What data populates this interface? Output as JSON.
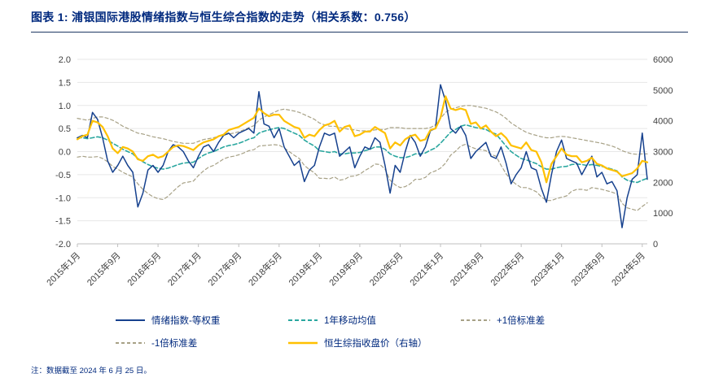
{
  "header": {
    "title": "图表 1:  浦银国际港股情绪指数与恒生综合指数的走势（相关系数：0.756）"
  },
  "note": "注：数据截至 2024 年 6 月 25 日。",
  "colors": {
    "navy": "#16418e",
    "teal": "#2aa79f",
    "olive": "#a7a186",
    "gold": "#ffc000",
    "title_navy": "#00297e",
    "grid": "#e7e7e7",
    "axis_line": "#bfbfbf",
    "axis_text": "#3f3f3f"
  },
  "chart_data": {
    "type": "line",
    "title": "浦银国际港股情绪指数与恒生综合指数的走势（相关系数：0.756）",
    "legend_position": "bottom",
    "grid": "horizontal",
    "x_count": 114,
    "x_tick_labels": [
      "2015年1月",
      "2015年9月",
      "2016年5月",
      "2017年1月",
      "2017年9月",
      "2018年5月",
      "2019年1月",
      "2019年9月",
      "2020年5月",
      "2021年1月",
      "2021年9月",
      "2022年5月",
      "2023年1月",
      "2023年9月",
      "2024年5月"
    ],
    "x_tick_indices": [
      0,
      8,
      16,
      24,
      32,
      40,
      48,
      56,
      64,
      72,
      80,
      88,
      96,
      104,
      112
    ],
    "left_axis": {
      "min": -2.0,
      "max": 2.0,
      "step": 0.5,
      "ticks": [
        "2.0",
        "1.5",
        "1.0",
        "0.5",
        "0.0",
        "-0.5",
        "-1.0",
        "-1.5",
        "-2.0"
      ]
    },
    "right_axis": {
      "min": 0,
      "max": 6000,
      "step": 1000,
      "ticks": [
        "6000",
        "5000",
        "4000",
        "3000",
        "2000",
        "1000",
        "0"
      ]
    },
    "series": [
      {
        "name": "情绪指数-等权重",
        "axis": "left",
        "color": "#16418e",
        "dash": null,
        "width": 1.5,
        "z": 4,
        "values": [
          0.3,
          0.35,
          0.3,
          0.85,
          0.7,
          0.3,
          -0.2,
          -0.45,
          -0.3,
          -0.1,
          -0.3,
          -0.45,
          -1.2,
          -0.9,
          -0.4,
          -0.3,
          -0.45,
          -0.3,
          0.0,
          0.15,
          0.1,
          0.0,
          -0.2,
          -0.35,
          -0.1,
          0.1,
          0.15,
          0.0,
          0.2,
          0.35,
          0.4,
          0.3,
          0.4,
          0.45,
          0.5,
          0.4,
          1.3,
          0.6,
          0.55,
          0.3,
          0.5,
          0.1,
          -0.1,
          -0.3,
          -0.2,
          -0.65,
          -0.4,
          -0.3,
          0.1,
          0.4,
          0.35,
          0.4,
          -0.1,
          0.0,
          0.1,
          -0.35,
          -0.1,
          0.1,
          0.05,
          0.3,
          0.2,
          -0.3,
          -0.9,
          -0.3,
          -0.45,
          0.0,
          0.35,
          0.2,
          -0.1,
          0.1,
          0.45,
          0.5,
          1.45,
          1.1,
          0.5,
          0.4,
          0.55,
          0.35,
          -0.15,
          0.0,
          0.1,
          0.2,
          -0.1,
          -0.15,
          0.1,
          -0.25,
          -0.7,
          -0.5,
          -0.35,
          0.0,
          -0.35,
          -0.4,
          -0.8,
          -1.1,
          -0.5,
          0.0,
          0.25,
          -0.15,
          -0.2,
          -0.25,
          -0.5,
          -0.3,
          -0.1,
          -0.55,
          -0.45,
          -0.7,
          -0.65,
          -0.85,
          -1.65,
          -1.0,
          -0.6,
          -0.5,
          0.4,
          -0.6
        ]
      },
      {
        "name": "1年移动均值",
        "axis": "left",
        "color": "#2aa79f",
        "dash": "5,3",
        "width": 1.6,
        "z": 3,
        "values": [
          0.3,
          0.3,
          0.28,
          0.3,
          0.32,
          0.3,
          0.25,
          0.18,
          0.12,
          0.05,
          0.0,
          -0.05,
          -0.15,
          -0.22,
          -0.28,
          -0.33,
          -0.36,
          -0.38,
          -0.36,
          -0.32,
          -0.28,
          -0.25,
          -0.24,
          -0.23,
          -0.15,
          -0.08,
          -0.03,
          0.0,
          0.05,
          0.1,
          0.13,
          0.15,
          0.18,
          0.22,
          0.27,
          0.3,
          0.4,
          0.44,
          0.47,
          0.5,
          0.52,
          0.5,
          0.45,
          0.4,
          0.35,
          0.25,
          0.18,
          0.12,
          0.02,
          0.0,
          -0.02,
          0.0,
          -0.05,
          -0.05,
          -0.03,
          -0.03,
          -0.02,
          0.02,
          0.05,
          0.1,
          0.1,
          0.05,
          -0.05,
          -0.1,
          -0.13,
          -0.13,
          -0.1,
          -0.05,
          -0.05,
          -0.03,
          0.03,
          0.08,
          0.18,
          0.3,
          0.42,
          0.48,
          0.55,
          0.58,
          0.55,
          0.52,
          0.5,
          0.48,
          0.42,
          0.38,
          0.25,
          0.12,
          0.0,
          -0.08,
          -0.15,
          -0.18,
          -0.22,
          -0.26,
          -0.33,
          -0.38,
          -0.38,
          -0.35,
          -0.33,
          -0.32,
          -0.28,
          -0.27,
          -0.28,
          -0.3,
          -0.28,
          -0.3,
          -0.32,
          -0.35,
          -0.38,
          -0.42,
          -0.55,
          -0.62,
          -0.65,
          -0.67,
          -0.62,
          -0.58
        ]
      },
      {
        "name": "+1倍标准差",
        "axis": "left",
        "color": "#a7a186",
        "dash": "4,3",
        "width": 1.2,
        "z": 1,
        "values": [
          0.72,
          0.7,
          0.68,
          0.72,
          0.75,
          0.75,
          0.72,
          0.68,
          0.62,
          0.55,
          0.5,
          0.45,
          0.4,
          0.38,
          0.35,
          0.32,
          0.3,
          0.28,
          0.25,
          0.22,
          0.2,
          0.18,
          0.18,
          0.18,
          0.22,
          0.26,
          0.28,
          0.3,
          0.33,
          0.36,
          0.38,
          0.4,
          0.43,
          0.47,
          0.52,
          0.56,
          0.68,
          0.75,
          0.8,
          0.85,
          0.9,
          0.92,
          0.9,
          0.88,
          0.85,
          0.8,
          0.75,
          0.7,
          0.62,
          0.58,
          0.55,
          0.55,
          0.52,
          0.5,
          0.48,
          0.47,
          0.45,
          0.45,
          0.45,
          0.47,
          0.48,
          0.48,
          0.52,
          0.52,
          0.52,
          0.5,
          0.5,
          0.5,
          0.5,
          0.5,
          0.52,
          0.58,
          0.72,
          0.85,
          0.92,
          0.95,
          0.98,
          1.0,
          1.0,
          0.98,
          0.96,
          0.94,
          0.9,
          0.86,
          0.8,
          0.72,
          0.62,
          0.55,
          0.48,
          0.42,
          0.38,
          0.35,
          0.32,
          0.3,
          0.3,
          0.32,
          0.33,
          0.32,
          0.3,
          0.28,
          0.26,
          0.24,
          0.22,
          0.2,
          0.18,
          0.15,
          0.12,
          0.08,
          0.02,
          -0.02,
          -0.05,
          -0.06,
          -0.05,
          -0.05
        ]
      },
      {
        "name": "-1倍标准差",
        "axis": "left",
        "color": "#a7a186",
        "dash": "4,3",
        "width": 1.2,
        "z": 2,
        "values": [
          -0.12,
          -0.1,
          -0.12,
          -0.12,
          -0.11,
          -0.15,
          -0.22,
          -0.32,
          -0.38,
          -0.45,
          -0.5,
          -0.55,
          -0.7,
          -0.82,
          -0.91,
          -0.98,
          -1.02,
          -1.04,
          -0.97,
          -0.86,
          -0.76,
          -0.68,
          -0.66,
          -0.64,
          -0.52,
          -0.42,
          -0.34,
          -0.3,
          -0.23,
          -0.16,
          -0.12,
          -0.1,
          -0.07,
          -0.03,
          0.02,
          0.04,
          0.12,
          0.13,
          0.14,
          0.15,
          0.14,
          0.08,
          0.0,
          -0.08,
          -0.15,
          -0.3,
          -0.39,
          -0.46,
          -0.58,
          -0.58,
          -0.59,
          -0.55,
          -0.62,
          -0.6,
          -0.54,
          -0.53,
          -0.49,
          -0.41,
          -0.35,
          -0.27,
          -0.28,
          -0.38,
          -0.62,
          -0.72,
          -0.78,
          -0.76,
          -0.7,
          -0.6,
          -0.6,
          -0.56,
          -0.46,
          -0.42,
          -0.36,
          -0.25,
          -0.08,
          0.01,
          0.12,
          0.16,
          0.1,
          0.06,
          0.04,
          0.02,
          -0.06,
          -0.1,
          -0.3,
          -0.48,
          -0.62,
          -0.71,
          -0.78,
          -0.78,
          -0.82,
          -0.87,
          -0.98,
          -1.06,
          -1.06,
          -1.02,
          -0.99,
          -0.96,
          -0.86,
          -0.82,
          -0.82,
          -0.84,
          -0.78,
          -0.8,
          -0.82,
          -0.85,
          -0.88,
          -0.92,
          -1.12,
          -1.22,
          -1.25,
          -1.28,
          -1.19,
          -1.11
        ]
      },
      {
        "name": "恒生综指收盘价（右轴）",
        "axis": "right",
        "color": "#ffc000",
        "dash": null,
        "width": 2.2,
        "z": 5,
        "values": [
          3400,
          3500,
          3550,
          4000,
          3950,
          3800,
          3500,
          3100,
          2950,
          3150,
          3100,
          3000,
          2750,
          2700,
          2850,
          2900,
          2800,
          2850,
          3000,
          3150,
          3200,
          3180,
          3120,
          3050,
          3200,
          3300,
          3350,
          3400,
          3500,
          3550,
          3700,
          3750,
          3800,
          3900,
          4000,
          4100,
          4400,
          4250,
          4150,
          4200,
          4200,
          4000,
          3900,
          3800,
          3750,
          3450,
          3550,
          3500,
          3700,
          3850,
          3900,
          4000,
          3650,
          3800,
          3850,
          3500,
          3550,
          3650,
          3650,
          3800,
          3700,
          3600,
          3100,
          3300,
          3200,
          3400,
          3500,
          3550,
          3350,
          3400,
          3700,
          3750,
          4100,
          4800,
          4400,
          4350,
          4400,
          4350,
          3900,
          3950,
          3750,
          3850,
          3650,
          3500,
          3600,
          3450,
          3200,
          3150,
          3100,
          3300,
          3050,
          3000,
          2650,
          2000,
          2600,
          2850,
          3100,
          2900,
          2850,
          2850,
          2650,
          2700,
          2800,
          2600,
          2550,
          2450,
          2400,
          2350,
          2200,
          2250,
          2300,
          2450,
          2700,
          2650
        ]
      }
    ]
  }
}
